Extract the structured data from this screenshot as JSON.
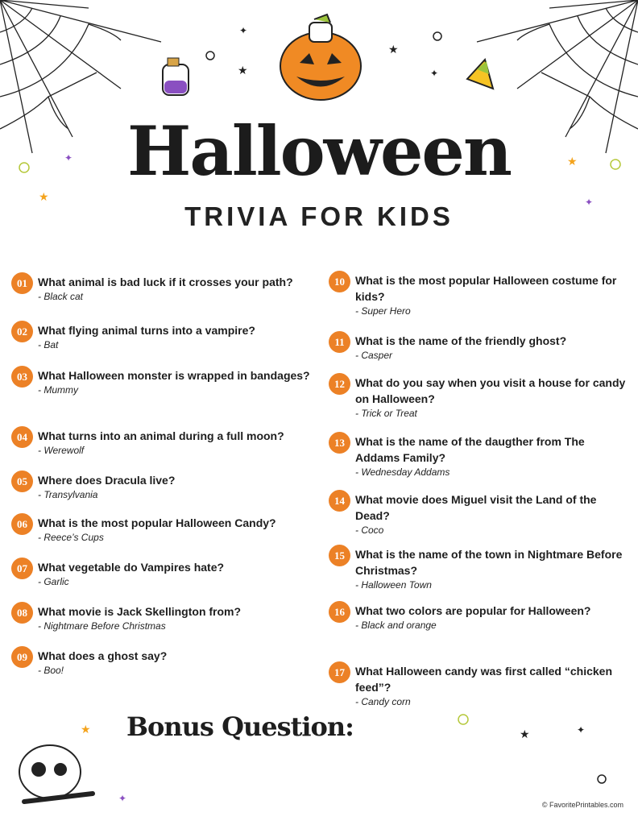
{
  "title": "Halloween",
  "subtitle": "TRIVIA FOR KIDS",
  "accent": "#ec8126",
  "questions": [
    {
      "num": "01",
      "q": "What animal is bad luck if it crosses your path?",
      "a": "- Black cat"
    },
    {
      "num": "02",
      "q": "What flying animal turns into a vampire?",
      "a": "- Bat"
    },
    {
      "num": "03",
      "q": "What Halloween monster is wrapped in bandages?",
      "a": "- Mummy"
    },
    {
      "num": "04",
      "q": "What turns into an animal during a full moon?",
      "a": "- Werewolf"
    },
    {
      "num": "05",
      "q": "Where does Dracula live?",
      "a": "- Transylvania"
    },
    {
      "num": "06",
      "q": "What is the most popular Halloween Candy?",
      "a": "- Reece’s Cups"
    },
    {
      "num": "07",
      "q": "What vegetable do Vampires hate?",
      "a": "- Garlic"
    },
    {
      "num": "08",
      "q": "What movie is Jack Skellington from?",
      "a": "- Nightmare Before Christmas"
    },
    {
      "num": "09",
      "q": "What does a ghost say?",
      "a": "- Boo!"
    },
    {
      "num": "10",
      "q": "What is the most popular Halloween costume for kids?",
      "a": "- Super Hero"
    },
    {
      "num": "11",
      "q": "What is the name of the friendly ghost?",
      "a": "- Casper"
    },
    {
      "num": "12",
      "q": "What do you say when you visit a house for candy on Halloween?",
      "a": "- Trick or Treat"
    },
    {
      "num": "13",
      "q": "What is the name of the daugther from The Addams Family?",
      "a": "- Wednesday Addams"
    },
    {
      "num": "14",
      "q": "What movie does Miguel visit the Land of the Dead?",
      "a": "- Coco"
    },
    {
      "num": "15",
      "q": "What is the name of the town in Nightmare Before Christmas?",
      "a": "- Halloween Town"
    },
    {
      "num": "16",
      "q": "What two colors are popular for Halloween?",
      "a": "- Black and orange"
    },
    {
      "num": "17",
      "q": "What Halloween candy was first called “chicken feed”?",
      "a": "- Candy corn"
    }
  ],
  "bonus": "Bonus Question:",
  "copyright": "© FavoritePrintables.com"
}
